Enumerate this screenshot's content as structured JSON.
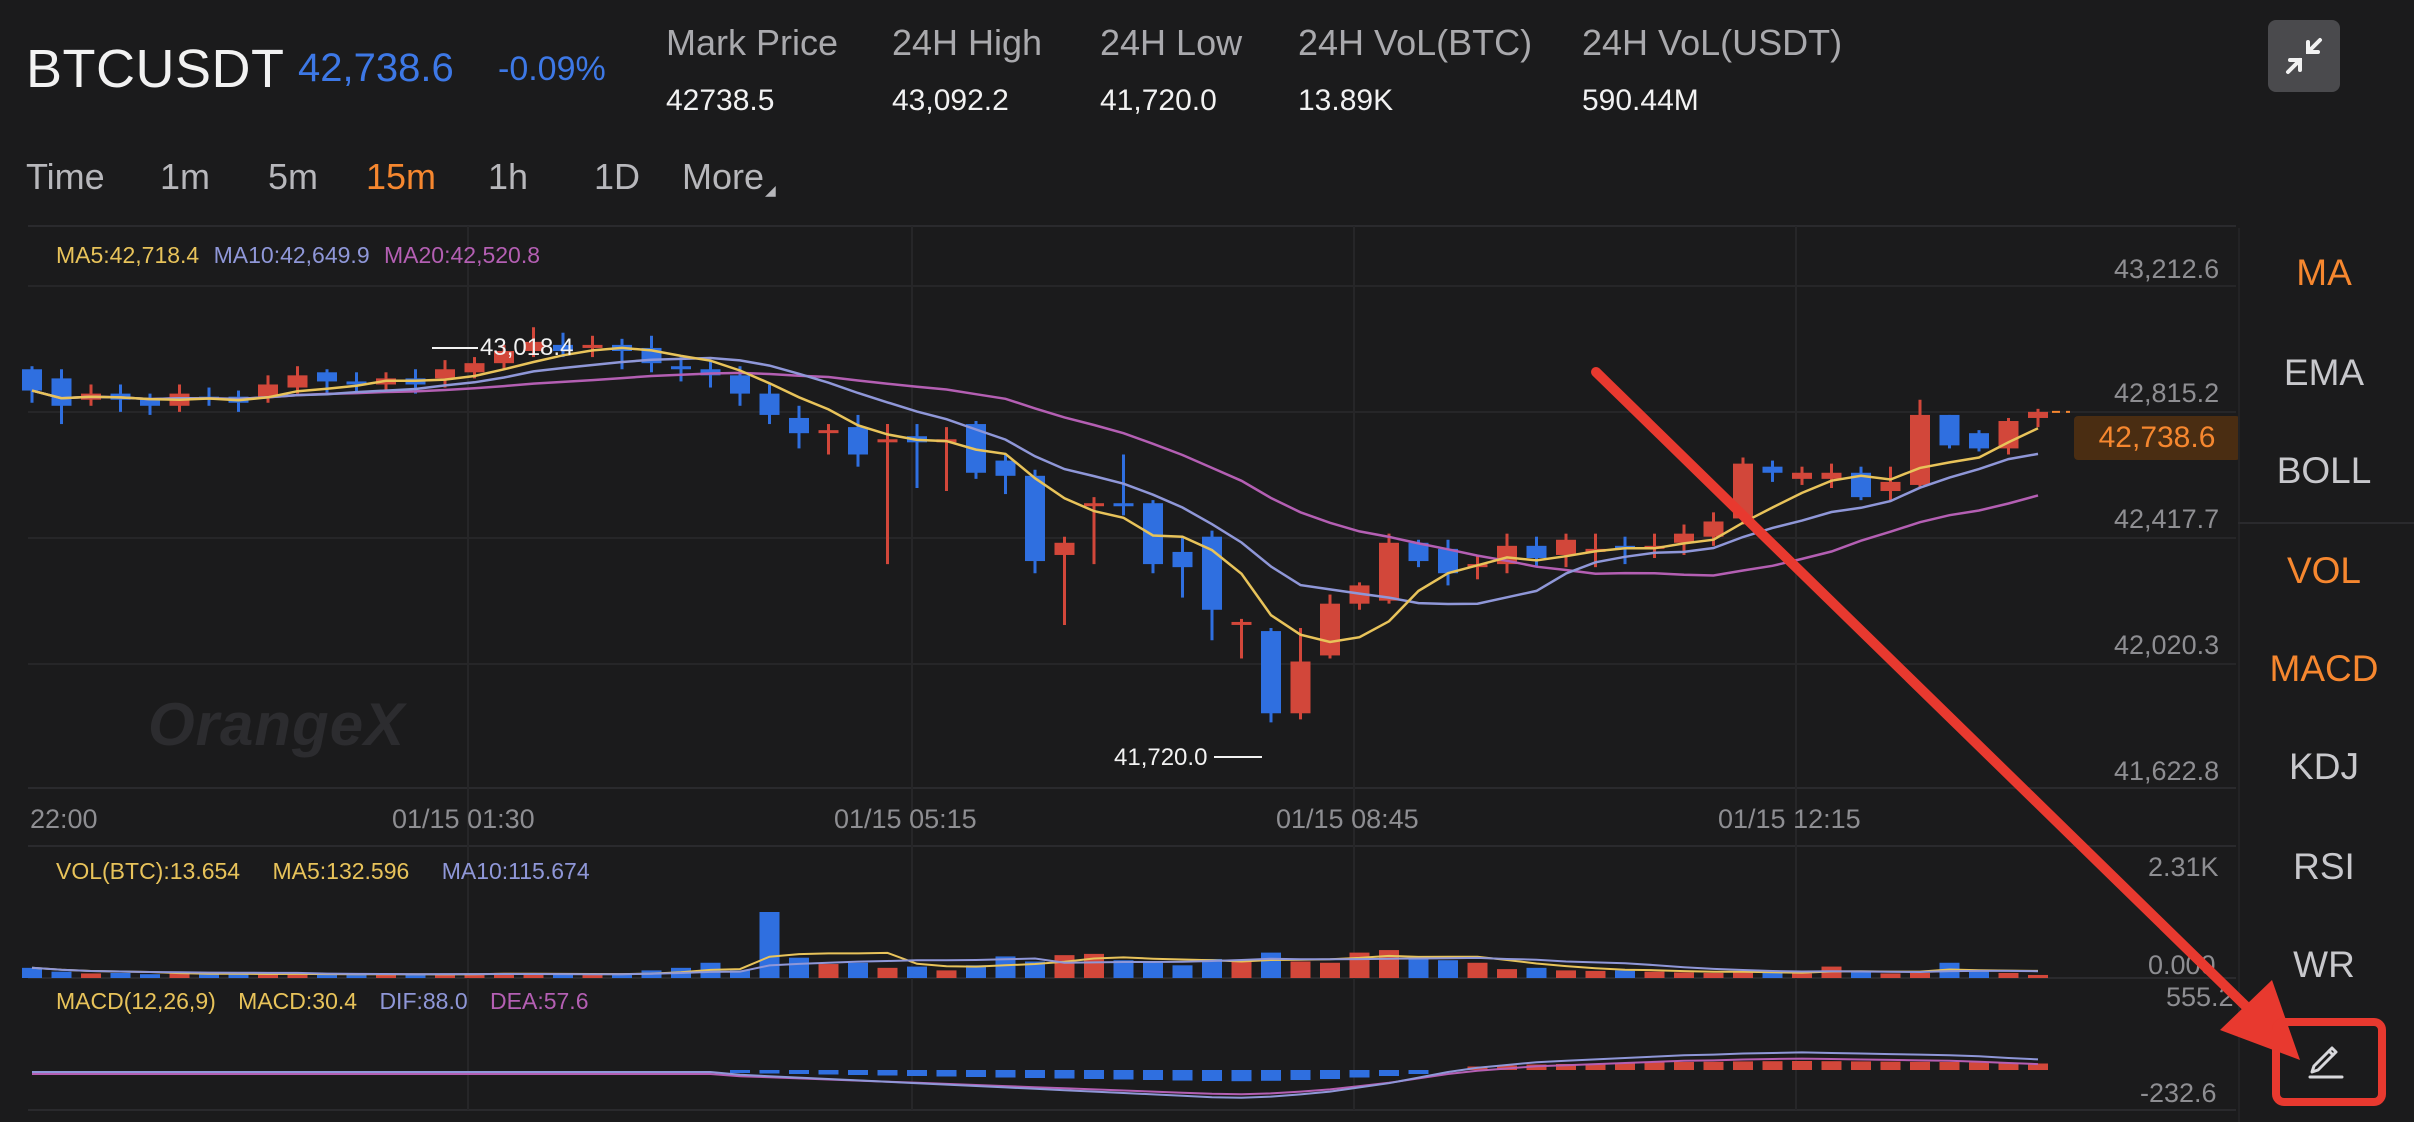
{
  "header": {
    "symbol": "BTCUSDT",
    "last_price": "42,738.6",
    "change_pct": "-0.09%",
    "stats": [
      {
        "label": "Mark Price",
        "value": "42738.5"
      },
      {
        "label": "24H High",
        "value": "43,092.2"
      },
      {
        "label": "24H Low",
        "value": "41,720.0"
      },
      {
        "label": "24H VoL(BTC)",
        "value": "13.89K"
      },
      {
        "label": "24H VoL(USDT)",
        "value": "590.44M"
      }
    ],
    "collapse_icon": "collapse-icon"
  },
  "intervals": {
    "items": [
      "Time",
      "1m",
      "5m",
      "15m",
      "1h",
      "1D"
    ],
    "more": "More",
    "active": "15m"
  },
  "main_chart": {
    "legend": {
      "ma5": "MA5:42,718.4",
      "ma10": "MA10:42,649.9",
      "ma20": "MA20:42,520.8"
    },
    "y_ticks": [
      "43,212.6",
      "42,815.2",
      "42,417.7",
      "42,020.3",
      "41,622.8"
    ],
    "x_ticks": [
      "22:00",
      "01/15 01:30",
      "01/15 05:15",
      "01/15 08:45",
      "01/15 12:15"
    ],
    "high_marker": "43,018.4",
    "low_marker": "41,720.0",
    "last_price_tag": "42,738.6",
    "watermark": "OrangeX"
  },
  "volume_panel": {
    "legend": {
      "vol": "VOL(BTC):13.654",
      "ma5": "MA5:132.596",
      "ma10": "MA10:115.674"
    },
    "y_top": "2.31K",
    "y_bottom": "0.000"
  },
  "macd_panel": {
    "legend": {
      "name": "MACD(12,26,9)",
      "macd": "MACD:30.4",
      "dif": "DIF:88.0",
      "dea": "DEA:57.6"
    },
    "y_top": "555.2",
    "y_bottom": "-232.6"
  },
  "indicators": {
    "items": [
      "MA",
      "EMA",
      "BOLL",
      "VOL",
      "MACD",
      "KDJ",
      "RSI",
      "WR"
    ],
    "active": [
      "MA",
      "VOL",
      "MACD"
    ],
    "draw_icon": "pencil-icon"
  },
  "colors": {
    "up": "#d2473a",
    "down": "#2f6fe0",
    "ma5": "#e8c35a",
    "ma10": "#8f97d8",
    "ma20": "#b45fb3",
    "accent": "#f6872f",
    "annotation": "#e8392f"
  },
  "chart_data": {
    "type": "candlestick",
    "price_range": [
      41622.8,
      43212.6
    ],
    "x_ticks": [
      "22:00",
      "01/15 01:30",
      "01/15 05:15",
      "01/15 08:45",
      "01/15 12:15"
    ],
    "candles": [
      [
        42880,
        42810,
        42890,
        42770
      ],
      [
        42850,
        42760,
        42880,
        42700
      ],
      [
        42780,
        42800,
        42830,
        42760
      ],
      [
        42800,
        42780,
        42830,
        42740
      ],
      [
        42780,
        42760,
        42800,
        42730
      ],
      [
        42760,
        42800,
        42830,
        42740
      ],
      [
        42790,
        42780,
        42820,
        42760
      ],
      [
        42790,
        42770,
        42810,
        42740
      ],
      [
        42790,
        42830,
        42860,
        42770
      ],
      [
        42820,
        42860,
        42890,
        42800
      ],
      [
        42870,
        42840,
        42880,
        42800
      ],
      [
        42840,
        42830,
        42870,
        42800
      ],
      [
        42830,
        42850,
        42870,
        42810
      ],
      [
        42850,
        42830,
        42880,
        42800
      ],
      [
        42850,
        42880,
        42910,
        42820
      ],
      [
        42870,
        42900,
        42920,
        42850
      ],
      [
        42900,
        42940,
        42960,
        42880
      ],
      [
        42940,
        42970,
        43018,
        42920
      ],
      [
        42960,
        42940,
        43000,
        42920
      ],
      [
        42950,
        42960,
        42990,
        42920
      ],
      [
        42960,
        42940,
        42980,
        42880
      ],
      [
        42950,
        42900,
        42990,
        42870
      ],
      [
        42890,
        42880,
        42920,
        42840
      ],
      [
        42880,
        42860,
        42910,
        42820
      ],
      [
        42860,
        42800,
        42890,
        42760
      ],
      [
        42800,
        42730,
        42830,
        42700
      ],
      [
        42720,
        42670,
        42760,
        42620
      ],
      [
        42680,
        42680,
        42700,
        42600
      ],
      [
        42690,
        42600,
        42730,
        42560
      ],
      [
        42640,
        42650,
        42700,
        42240
      ],
      [
        42660,
        42640,
        42700,
        42490
      ],
      [
        42640,
        42650,
        42690,
        42480
      ],
      [
        42700,
        42540,
        42710,
        42520
      ],
      [
        42580,
        42530,
        42600,
        42470
      ],
      [
        42530,
        42250,
        42550,
        42210
      ],
      [
        42270,
        42310,
        42330,
        42040
      ],
      [
        42440,
        42440,
        42460,
        42240
      ],
      [
        42440,
        42430,
        42600,
        42400
      ],
      [
        42440,
        42240,
        42450,
        42210
      ],
      [
        42280,
        42230,
        42330,
        42130
      ],
      [
        42330,
        42090,
        42350,
        41990
      ],
      [
        42050,
        42050,
        42060,
        41930
      ],
      [
        42020,
        41750,
        42030,
        41720
      ],
      [
        41750,
        41920,
        42030,
        41730
      ],
      [
        41940,
        42110,
        42140,
        41930
      ],
      [
        42110,
        42170,
        42180,
        42090
      ],
      [
        42120,
        42310,
        42340,
        42110
      ],
      [
        42310,
        42250,
        42320,
        42230
      ],
      [
        42290,
        42210,
        42320,
        42170
      ],
      [
        42230,
        42240,
        42270,
        42190
      ],
      [
        42240,
        42300,
        42340,
        42210
      ],
      [
        42300,
        42260,
        42330,
        42230
      ],
      [
        42270,
        42320,
        42340,
        42230
      ],
      [
        42290,
        42290,
        42340,
        42230
      ],
      [
        42300,
        42290,
        42330,
        42240
      ],
      [
        42290,
        42300,
        42340,
        42260
      ],
      [
        42310,
        42340,
        42370,
        42270
      ],
      [
        42330,
        42380,
        42410,
        42300
      ],
      [
        42390,
        42570,
        42590,
        42370
      ],
      [
        42560,
        42540,
        42580,
        42510
      ],
      [
        42520,
        42540,
        42560,
        42500
      ],
      [
        42520,
        42540,
        42570,
        42490
      ],
      [
        42540,
        42460,
        42560,
        42450
      ],
      [
        42480,
        42510,
        42560,
        42450
      ],
      [
        42500,
        42730,
        42780,
        42490
      ],
      [
        42730,
        42630,
        42730,
        42620
      ],
      [
        42670,
        42620,
        42680,
        42610
      ],
      [
        42620,
        42710,
        42720,
        42600
      ],
      [
        42720,
        42740,
        42750,
        42690
      ]
    ],
    "volume": [
      40,
      25,
      18,
      20,
      15,
      18,
      14,
      16,
      15,
      18,
      14,
      12,
      14,
      15,
      16,
      18,
      20,
      14,
      12,
      14,
      16,
      30,
      40,
      60,
      30,
      260,
      80,
      55,
      60,
      40,
      45,
      30,
      50,
      85,
      65,
      90,
      95,
      70,
      60,
      50,
      75,
      70,
      100,
      65,
      60,
      100,
      110,
      80,
      70,
      60,
      35,
      40,
      30,
      28,
      30,
      25,
      22,
      20,
      25,
      20,
      18,
      45,
      25,
      18,
      20,
      60,
      28,
      20,
      12
    ],
    "macd_hist": [
      0,
      0,
      0,
      0,
      0,
      0,
      0,
      0,
      0,
      0,
      0,
      0,
      0,
      0,
      0,
      0,
      0,
      0,
      0,
      0,
      0,
      0,
      0,
      0,
      -10,
      -15,
      -20,
      -25,
      -30,
      -35,
      -40,
      -45,
      -50,
      -55,
      -60,
      -65,
      -70,
      -75,
      -80,
      -85,
      -90,
      -92,
      -88,
      -80,
      -70,
      -55,
      -40,
      -20,
      0,
      15,
      25,
      35,
      40,
      45,
      50,
      55,
      60,
      62,
      66,
      68,
      70,
      68,
      66,
      64,
      62,
      60,
      56,
      50,
      45
    ],
    "ma_lines": [
      "MA5",
      "MA10",
      "MA20"
    ]
  }
}
